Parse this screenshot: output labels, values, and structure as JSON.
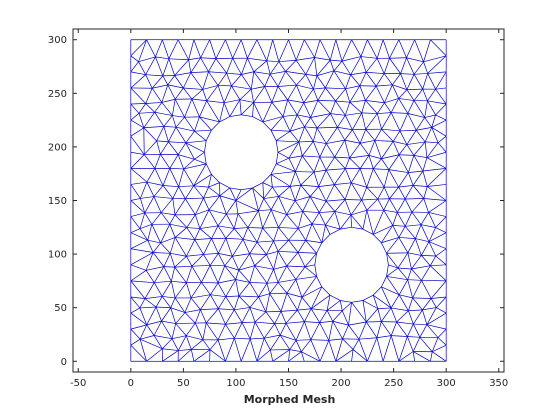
{
  "chart_data": {
    "type": "mesh",
    "title": "",
    "xlabel": "Morphed Mesh",
    "ylabel": "",
    "xlim": [
      -55,
      355
    ],
    "ylim": [
      -10,
      310
    ],
    "xticks": [
      -50,
      0,
      50,
      100,
      150,
      200,
      250,
      300,
      350
    ],
    "xtick_labels": [
      "-50",
      "0",
      "50",
      "100",
      "150",
      "200",
      "250",
      "300",
      "350"
    ],
    "yticks": [
      0,
      50,
      100,
      150,
      200,
      250,
      300
    ],
    "ytick_labels": [
      "0",
      "50",
      "100",
      "150",
      "200",
      "250",
      "300"
    ],
    "grid": false,
    "legend": "none",
    "domain": {
      "x": [
        0,
        300
      ],
      "y": [
        0,
        300
      ]
    },
    "holes": [
      {
        "cx": 105,
        "cy": 195,
        "r": 35
      },
      {
        "cx": 210,
        "cy": 90,
        "r": 35
      }
    ],
    "mesh_spacing": 15
  },
  "colors": {
    "mesh": "#0000cc",
    "axes": "#262626",
    "background": "#ffffff"
  }
}
